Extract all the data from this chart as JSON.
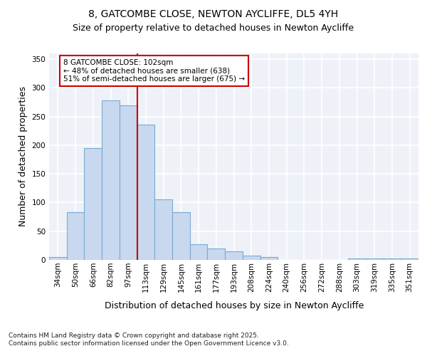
{
  "title_line1": "8, GATCOMBE CLOSE, NEWTON AYCLIFFE, DL5 4YH",
  "title_line2": "Size of property relative to detached houses in Newton Aycliffe",
  "xlabel": "Distribution of detached houses by size in Newton Aycliffe",
  "ylabel": "Number of detached properties",
  "footnote": "Contains HM Land Registry data © Crown copyright and database right 2025.\nContains public sector information licensed under the Open Government Licence v3.0.",
  "categories": [
    "34sqm",
    "50sqm",
    "66sqm",
    "82sqm",
    "97sqm",
    "113sqm",
    "129sqm",
    "145sqm",
    "161sqm",
    "177sqm",
    "193sqm",
    "208sqm",
    "224sqm",
    "240sqm",
    "256sqm",
    "272sqm",
    "288sqm",
    "303sqm",
    "319sqm",
    "335sqm",
    "351sqm"
  ],
  "values": [
    5,
    83,
    195,
    278,
    269,
    236,
    105,
    83,
    27,
    20,
    15,
    8,
    5,
    0,
    0,
    0,
    0,
    2,
    2,
    2,
    3
  ],
  "bar_color": "#c8d8ee",
  "bar_edge_color": "#7aaad0",
  "vline_color": "#cc0000",
  "annotation_text": "8 GATCOMBE CLOSE: 102sqm\n← 48% of detached houses are smaller (638)\n51% of semi-detached houses are larger (675) →",
  "annotation_box_color": "#ffffff",
  "annotation_box_edge": "#cc0000",
  "ylim": [
    0,
    360
  ],
  "yticks": [
    0,
    50,
    100,
    150,
    200,
    250,
    300,
    350
  ],
  "bg_color": "#eef2f8",
  "grid_color": "#ffffff",
  "fig_bg_color": "#ffffff",
  "title_fontsize": 10,
  "subtitle_fontsize": 9,
  "axis_label_fontsize": 9,
  "tick_fontsize": 7.5,
  "annot_fontsize": 7.5,
  "footnote_fontsize": 6.5
}
